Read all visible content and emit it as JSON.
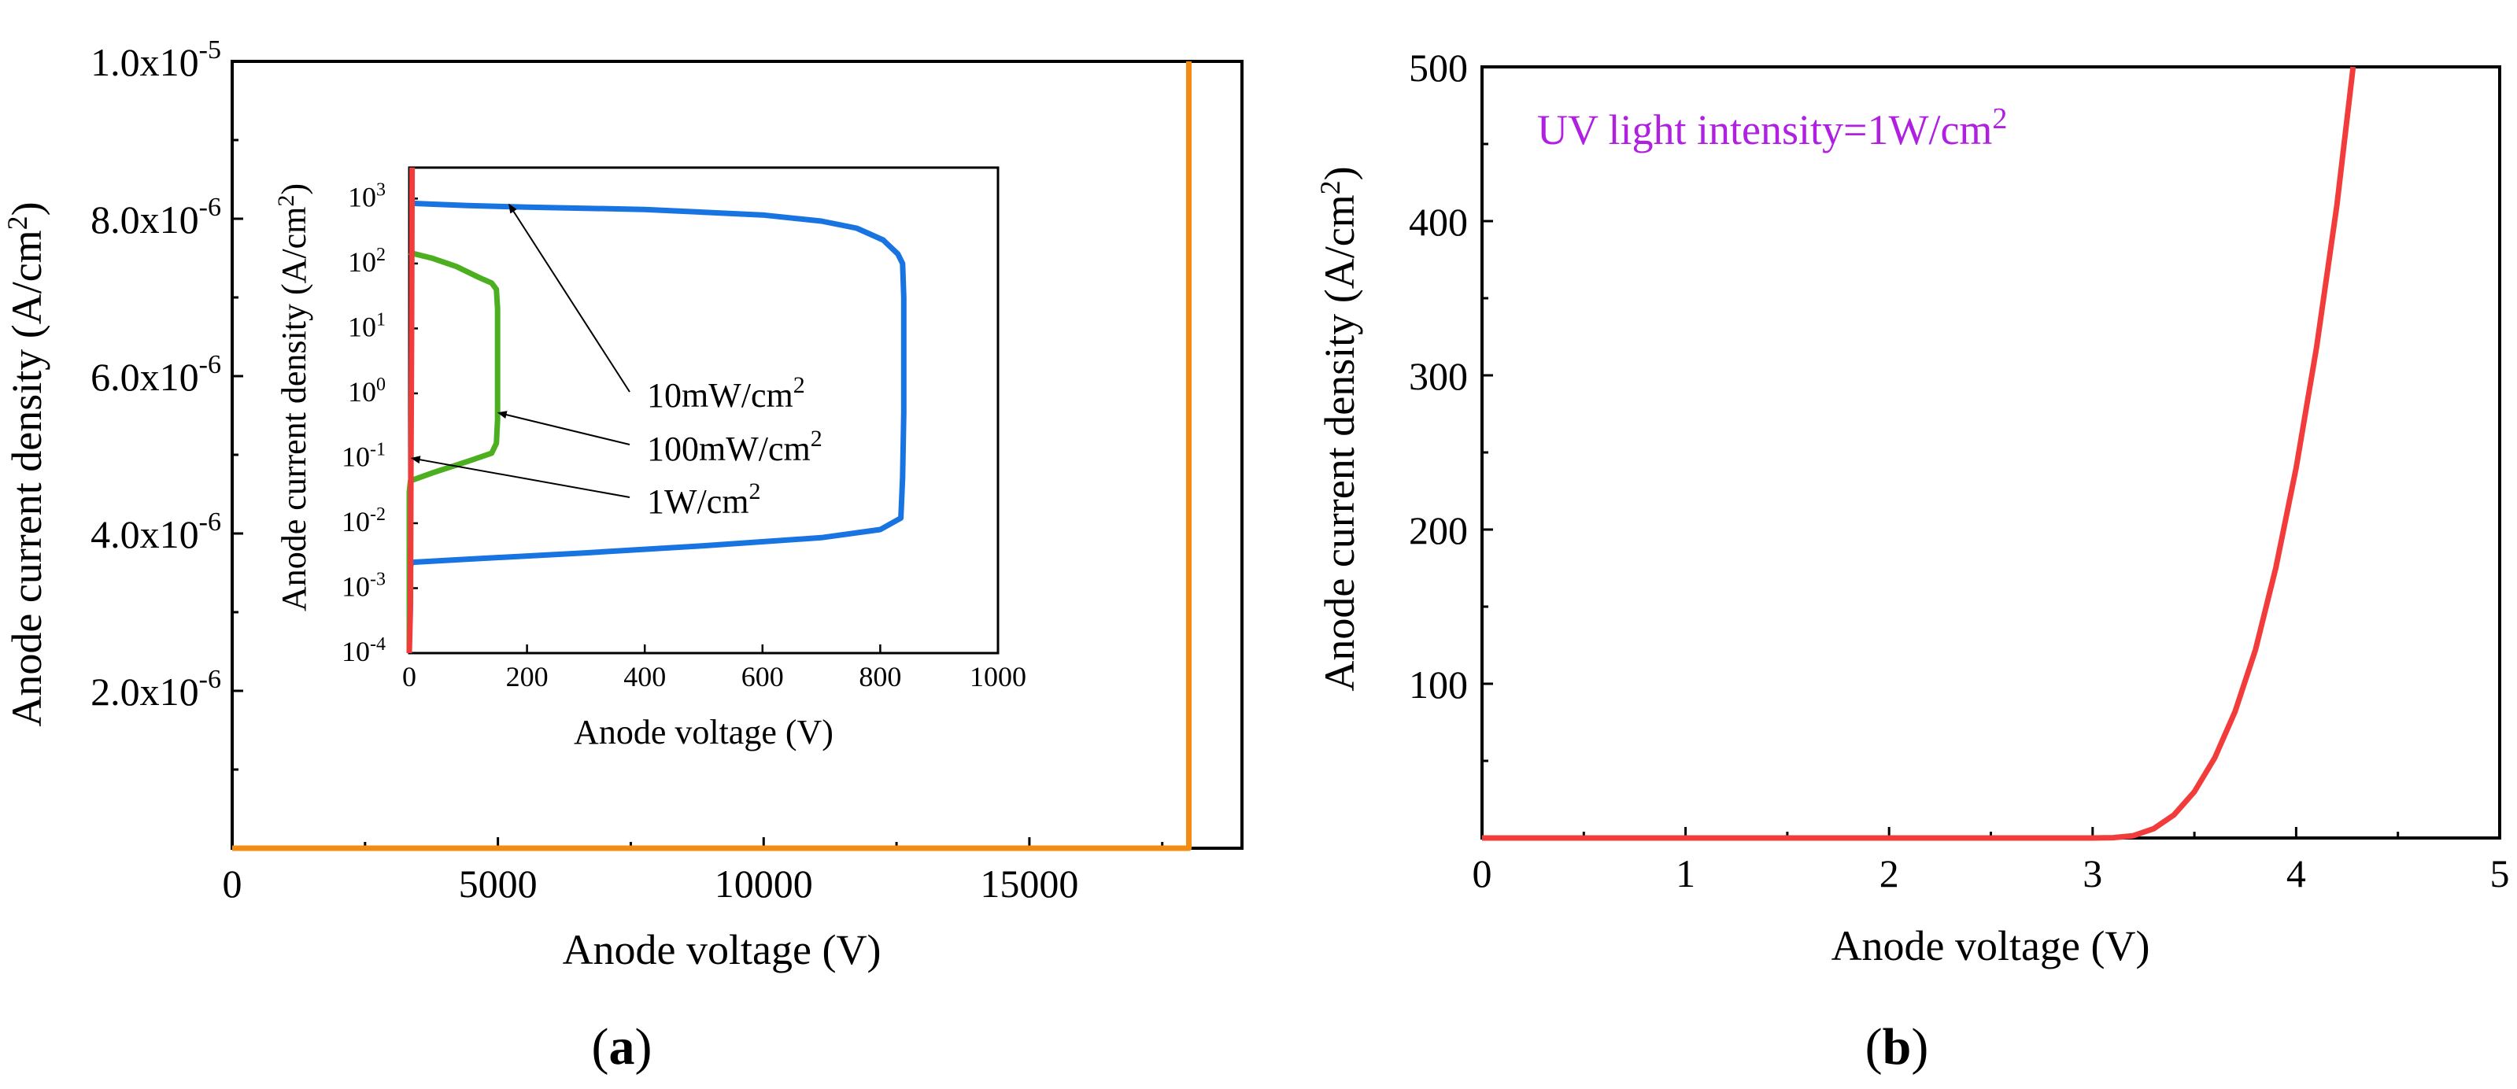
{
  "colors": {
    "orange": "#F28C13",
    "blue": "#1874E0",
    "green": "#4CAF20",
    "red": "#F23C3C",
    "purple": "#B020E0"
  },
  "panel_labels": {
    "a": "(a)",
    "b": "(b)"
  },
  "chart_data": [
    {
      "type": "line",
      "panel": "a",
      "xlabel": "Anode voltage (V)",
      "ylabel": "Anode current density (A/cm²)",
      "xlim": [
        0,
        19000
      ],
      "ylim": [
        0,
        1e-05
      ],
      "x_ticks": [
        0,
        5000,
        10000,
        15000
      ],
      "x_tick_labels": [
        "0",
        "5000",
        "10000",
        "15000"
      ],
      "y_ticks": [
        2e-06,
        4e-06,
        6e-06,
        8e-06,
        1e-05
      ],
      "y_tick_labels": [
        {
          "mant": "2.0x10",
          "exp": "-6"
        },
        {
          "mant": "4.0x10",
          "exp": "-6"
        },
        {
          "mant": "6.0x10",
          "exp": "-6"
        },
        {
          "mant": "8.0x10",
          "exp": "-6"
        },
        {
          "mant": "1.0x10",
          "exp": "-5"
        }
      ],
      "grid": false,
      "series": [
        {
          "color": "orange",
          "x": [
            0,
            18000,
            18000,
            18000
          ],
          "y": [
            0,
            0,
            5e-06,
            1e-05
          ]
        }
      ]
    },
    {
      "type": "line",
      "panel": "a-inset",
      "xlabel": "Anode voltage (V)",
      "ylabel": "Anode current density (A/cm²)",
      "xlim": [
        0,
        1000
      ],
      "ylim": [
        0.0001,
        3000
      ],
      "yscale": "log",
      "x_ticks": [
        0,
        200,
        400,
        600,
        800,
        1000
      ],
      "x_tick_labels": [
        "0",
        "200",
        "400",
        "600",
        "800",
        "1000"
      ],
      "y_ticks": [
        0.0001,
        0.001,
        0.01,
        0.1,
        1,
        10,
        100,
        1000
      ],
      "y_tick_labels": [
        {
          "mant": "10",
          "exp": "-4"
        },
        {
          "mant": "10",
          "exp": "-3"
        },
        {
          "mant": "10",
          "exp": "-2"
        },
        {
          "mant": "10",
          "exp": "-1"
        },
        {
          "mant": "10",
          "exp": "0"
        },
        {
          "mant": "10",
          "exp": "1"
        },
        {
          "mant": "10",
          "exp": "2"
        },
        {
          "mant": "10",
          "exp": "3"
        }
      ],
      "grid": false,
      "series": [
        {
          "name": "10mW/cm²",
          "color": "blue",
          "x": [
            0,
            0,
            0,
            5,
            100,
            300,
            500,
            700,
            800,
            835,
            838,
            840,
            840,
            840,
            838,
            830,
            805,
            760,
            700,
            600,
            400,
            200,
            100,
            40,
            0
          ],
          "y": [
            0.0001,
            0.0008,
            0.002,
            0.0025,
            0.0028,
            0.0035,
            0.0045,
            0.006,
            0.008,
            0.012,
            0.05,
            0.5,
            5,
            30,
            100,
            140,
            230,
            350,
            450,
            560,
            680,
            740,
            780,
            820,
            850
          ]
        },
        {
          "name": "100mW/cm²",
          "color": "green",
          "x": [
            0,
            0,
            2,
            40,
            100,
            140,
            148,
            150,
            150,
            150,
            148,
            140,
            120,
            80,
            40,
            10,
            0
          ],
          "y": [
            0.0001,
            0.03,
            0.045,
            0.06,
            0.09,
            0.12,
            0.17,
            0.4,
            2,
            20,
            40,
            50,
            60,
            90,
            120,
            140,
            150
          ]
        },
        {
          "name": "1W/cm²",
          "color": "red",
          "x": [
            0,
            2,
            3,
            4,
            4.5,
            4.8
          ],
          "y": [
            0.0001,
            0.0005,
            0.1,
            10,
            500,
            3000
          ]
        }
      ],
      "annotations": [
        {
          "text": "10mW/cm",
          "sup": "2",
          "target_x": 170,
          "target_y": 800
        },
        {
          "text": "100mW/cm",
          "sup": "2",
          "target_x": 152,
          "target_y": 0.5
        },
        {
          "text": "1W/cm",
          "sup": "2",
          "target_x": 5,
          "target_y": 0.1
        }
      ]
    },
    {
      "type": "line",
      "panel": "b",
      "xlabel": "Anode voltage (V)",
      "ylabel": "Anode current density (A/cm²)",
      "xlim": [
        0,
        5
      ],
      "ylim": [
        0,
        500
      ],
      "x_ticks": [
        0,
        1,
        2,
        3,
        4,
        5
      ],
      "x_tick_labels": [
        "0",
        "1",
        "2",
        "3",
        "4",
        "5"
      ],
      "y_ticks": [
        100,
        200,
        300,
        400,
        500
      ],
      "y_tick_labels": [
        "100",
        "200",
        "300",
        "400",
        "500"
      ],
      "grid": false,
      "annotation": {
        "text": "UV light intensity=1W/cm",
        "sup": "2",
        "color": "purple"
      },
      "series": [
        {
          "color": "red",
          "x": [
            0,
            1,
            2,
            3.0,
            3.1,
            3.2,
            3.3,
            3.4,
            3.5,
            3.6,
            3.7,
            3.8,
            3.9,
            4.0,
            4.1,
            4.2,
            4.28
          ],
          "y": [
            0,
            0,
            0,
            0,
            0.2,
            1.5,
            6,
            15,
            30,
            52,
            82,
            122,
            175,
            240,
            318,
            410,
            500
          ]
        }
      ]
    }
  ]
}
